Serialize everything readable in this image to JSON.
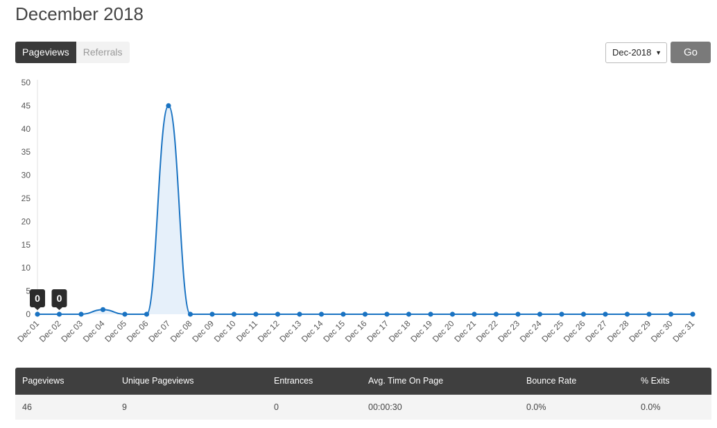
{
  "header": {
    "title": "December 2018"
  },
  "tabs": [
    {
      "label": "Pageviews",
      "active": true
    },
    {
      "label": "Referrals",
      "active": false
    }
  ],
  "controls": {
    "month_value": "Dec-2018",
    "go_label": "Go"
  },
  "colors": {
    "series": "#1a73c2",
    "area": "#dbe9f8",
    "tooltip_bg": "#2b2b2b"
  },
  "chart_data": {
    "type": "line",
    "categories": [
      "Dec 01",
      "Dec 02",
      "Dec 03",
      "Dec 04",
      "Dec 05",
      "Dec 06",
      "Dec 07",
      "Dec 08",
      "Dec 09",
      "Dec 10",
      "Dec 11",
      "Dec 12",
      "Dec 13",
      "Dec 14",
      "Dec 15",
      "Dec 16",
      "Dec 17",
      "Dec 18",
      "Dec 19",
      "Dec 20",
      "Dec 21",
      "Dec 22",
      "Dec 23",
      "Dec 24",
      "Dec 25",
      "Dec 26",
      "Dec 27",
      "Dec 28",
      "Dec 29",
      "Dec 30",
      "Dec 31"
    ],
    "series": [
      {
        "values": [
          0,
          0,
          0,
          1,
          0,
          0,
          45,
          0,
          0,
          0,
          0,
          0,
          0,
          0,
          0,
          0,
          0,
          0,
          0,
          0,
          0,
          0,
          0,
          0,
          0,
          0,
          0,
          0,
          0,
          0,
          0
        ]
      }
    ],
    "ylim": [
      0,
      50
    ],
    "yticks": [
      0,
      5,
      10,
      15,
      20,
      25,
      30,
      35,
      40,
      45,
      50
    ],
    "tooltips": [
      {
        "index": 0,
        "text": "0"
      },
      {
        "index": 1,
        "text": "0"
      }
    ],
    "grid": false,
    "xlabel": "",
    "ylabel": ""
  },
  "stats": {
    "headers": [
      "Pageviews",
      "Unique Pageviews",
      "Entrances",
      "Avg. Time On Page",
      "Bounce Rate",
      "% Exits"
    ],
    "values": [
      "46",
      "9",
      "0",
      "00:00:30",
      "0.0%",
      "0.0%"
    ]
  }
}
